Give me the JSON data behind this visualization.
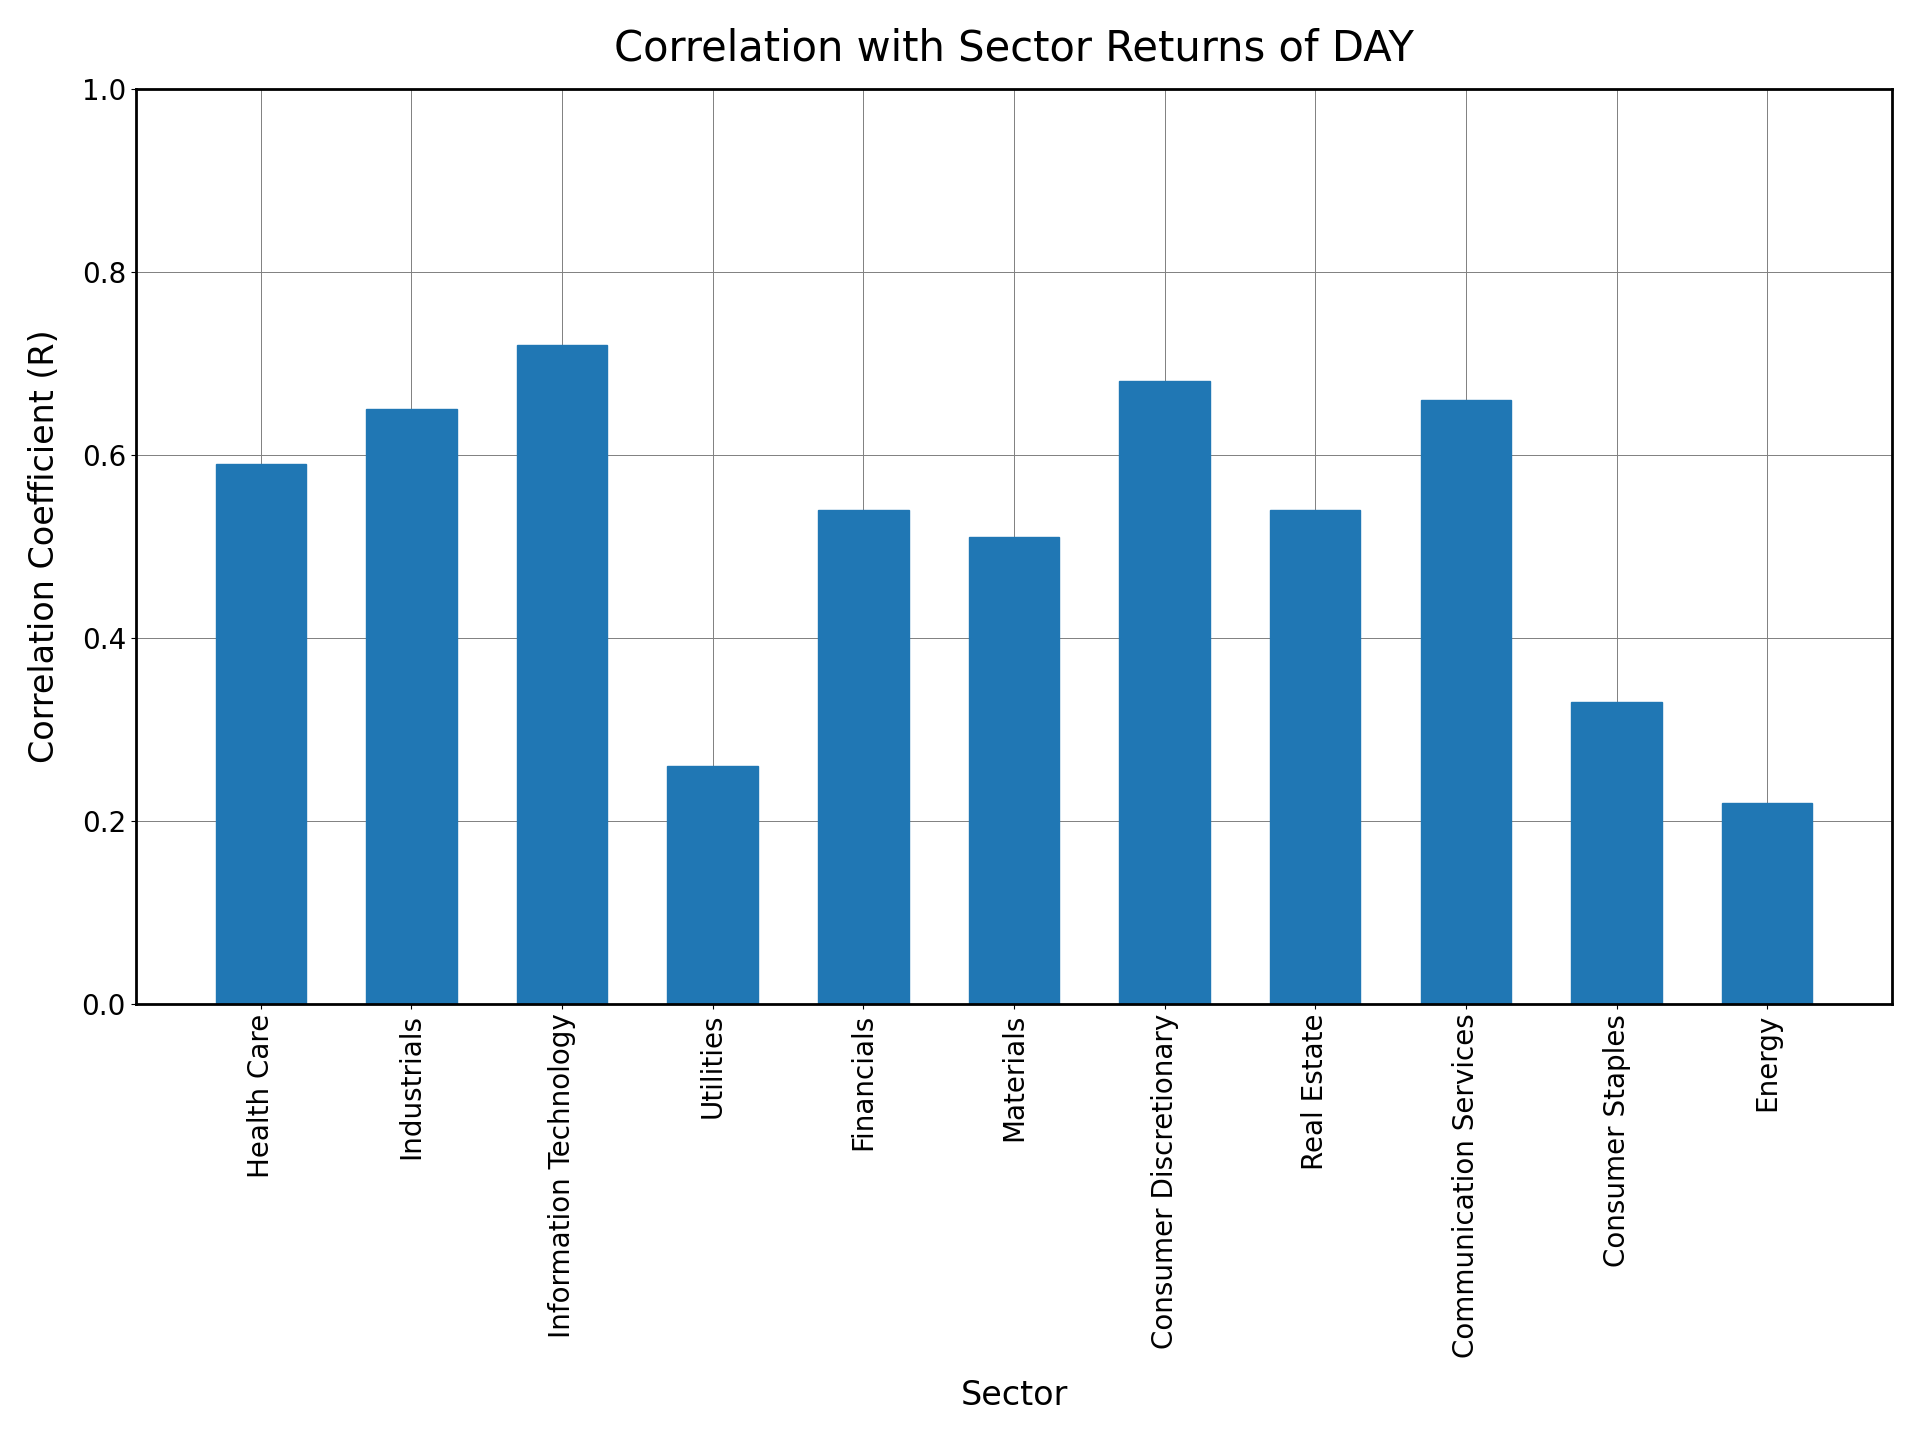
{
  "title": "Correlation with Sector Returns of DAY",
  "xlabel": "Sector",
  "ylabel": "Correlation Coefficient (R)",
  "categories": [
    "Health Care",
    "Industrials",
    "Information Technology",
    "Utilities",
    "Financials",
    "Materials",
    "Consumer Discretionary",
    "Real Estate",
    "Communication Services",
    "Consumer Staples",
    "Energy"
  ],
  "values": [
    0.59,
    0.65,
    0.72,
    0.26,
    0.54,
    0.51,
    0.68,
    0.54,
    0.66,
    0.33,
    0.22
  ],
  "bar_color": "#2077b4",
  "ylim": [
    0.0,
    1.0
  ],
  "yticks": [
    0.0,
    0.2,
    0.4,
    0.6,
    0.8,
    1.0
  ],
  "title_fontsize": 30,
  "label_fontsize": 24,
  "tick_fontsize": 20,
  "figsize": [
    19.2,
    14.4
  ],
  "dpi": 100
}
